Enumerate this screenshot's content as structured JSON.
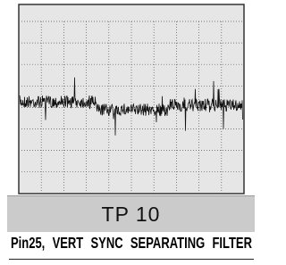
{
  "label": "TP 10",
  "caption": "Pin25, VERT SYNC SEPARATING FILTER"
}
